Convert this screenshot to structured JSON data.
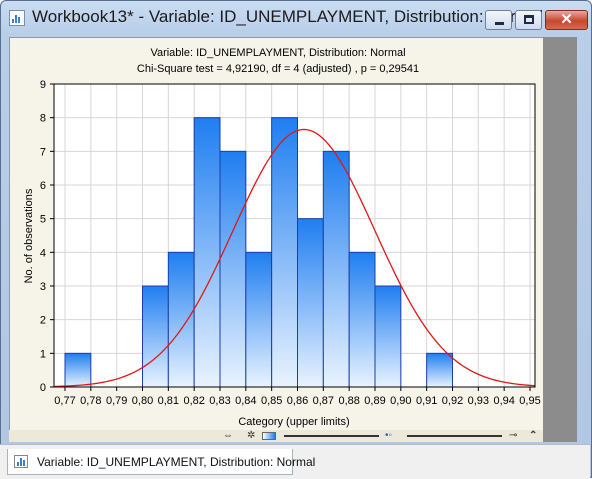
{
  "window": {
    "title": "Workbook13* - Variable: ID_UNEMPLAYMENT, Distribution: Normal",
    "close_glyph": "✕"
  },
  "chart_data": {
    "type": "bar",
    "title": "Variable: ID_UNEMPLAYMENT, Distribution: Normal",
    "subtitle": "Chi-Square test = 4,92190, df = 4 (adjusted) , p = 0,29541",
    "xlabel": "Category (upper limits)",
    "ylabel": "No. of observations",
    "categories": [
      "0,77",
      "0,78",
      "0,79",
      "0,80",
      "0,81",
      "0,82",
      "0,83",
      "0,84",
      "0,85",
      "0,86",
      "0,87",
      "0,88",
      "0,89",
      "0,90",
      "0,91",
      "0,92",
      "0,93",
      "0,94",
      "0,95"
    ],
    "values": [
      0,
      1,
      0,
      0,
      3,
      4,
      8,
      7,
      4,
      8,
      5,
      7,
      4,
      3,
      0,
      1,
      0,
      0,
      0
    ],
    "yticks": [
      "0",
      "1",
      "2",
      "3",
      "4",
      "5",
      "6",
      "7",
      "8",
      "9"
    ],
    "ylim": [
      0,
      9
    ],
    "fit": {
      "distribution": "Normal",
      "mean": 0.8625,
      "sd": 0.0275,
      "peak": 7.65
    },
    "grid": true,
    "colors": {
      "bar_top": "#1f7ef0",
      "bar_bottom": "#e9f3ff",
      "bar_edge": "#1a3fa8",
      "curve": "#e01818"
    }
  },
  "toolbar": {
    "icons": [
      "move-icon",
      "gear-icon",
      "gradient-swatch-icon",
      "slider-track",
      "slider-track-2",
      "key-icon",
      "collapse-icon"
    ]
  },
  "tab": {
    "label": "Variable: ID_UNEMPLAYMENT, Distribution: Normal"
  }
}
